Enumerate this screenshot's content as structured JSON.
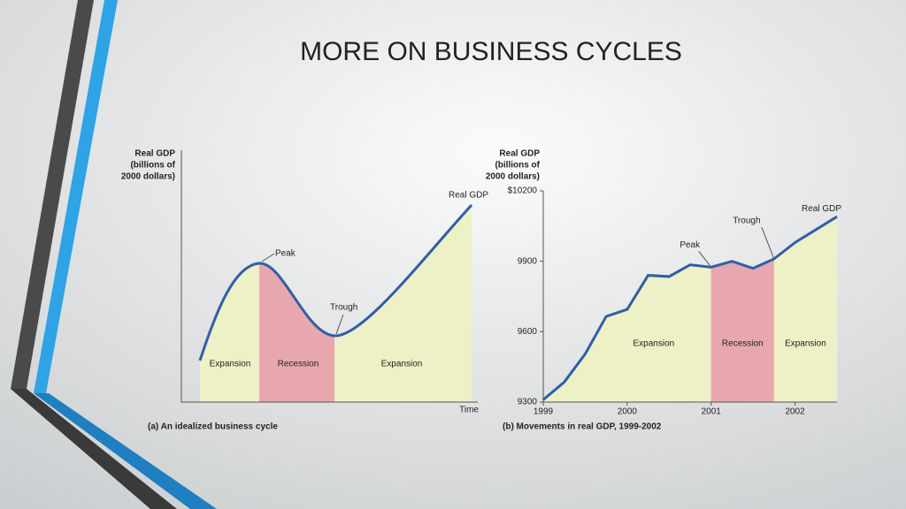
{
  "slide_title": "MORE ON BUSINESS CYCLES",
  "chart_data": [
    {
      "y_label": [
        "Real GDP",
        "(billions of",
        "2000 dollars)"
      ],
      "x_label": "Time",
      "caption": "(a) An idealized business cycle",
      "annotations": {
        "peak": "Peak",
        "trough": "Trough",
        "line": "Real GDP"
      },
      "regions": [
        "Expansion",
        "Recession",
        "Expansion"
      ]
    },
    {
      "type": "line",
      "y_label": [
        "Real GDP",
        "(billions of",
        "2000 dollars)"
      ],
      "caption": "(b) Movements in real GDP, 1999-2002",
      "series": [
        {
          "name": "Real GDP",
          "color": "#2f5fa8",
          "x": [
            1999,
            1999.25,
            1999.5,
            1999.75,
            2000,
            2000.25,
            2000.5,
            2000.75,
            2001,
            2001.25,
            2001.5,
            2001.75,
            2002,
            2002.25,
            2002.5
          ],
          "values": [
            9310,
            9385,
            9505,
            9665,
            9695,
            9840,
            9835,
            9885,
            9875,
            9900,
            9870,
            9910,
            9980,
            10035,
            10090
          ]
        }
      ],
      "xlim": [
        1999,
        2002.5
      ],
      "xticks": [
        1999,
        2000,
        2001,
        2002
      ],
      "ylim": [
        9300,
        10200
      ],
      "yticks": [
        9300,
        9600,
        9900,
        {
          "value": 10200,
          "label": "$10200"
        }
      ],
      "recession": [
        2001,
        2001.75
      ],
      "annotations": {
        "peak": "Peak",
        "trough": "Trough"
      },
      "regions": [
        "Expansion",
        "Recession",
        "Expansion"
      ]
    }
  ]
}
